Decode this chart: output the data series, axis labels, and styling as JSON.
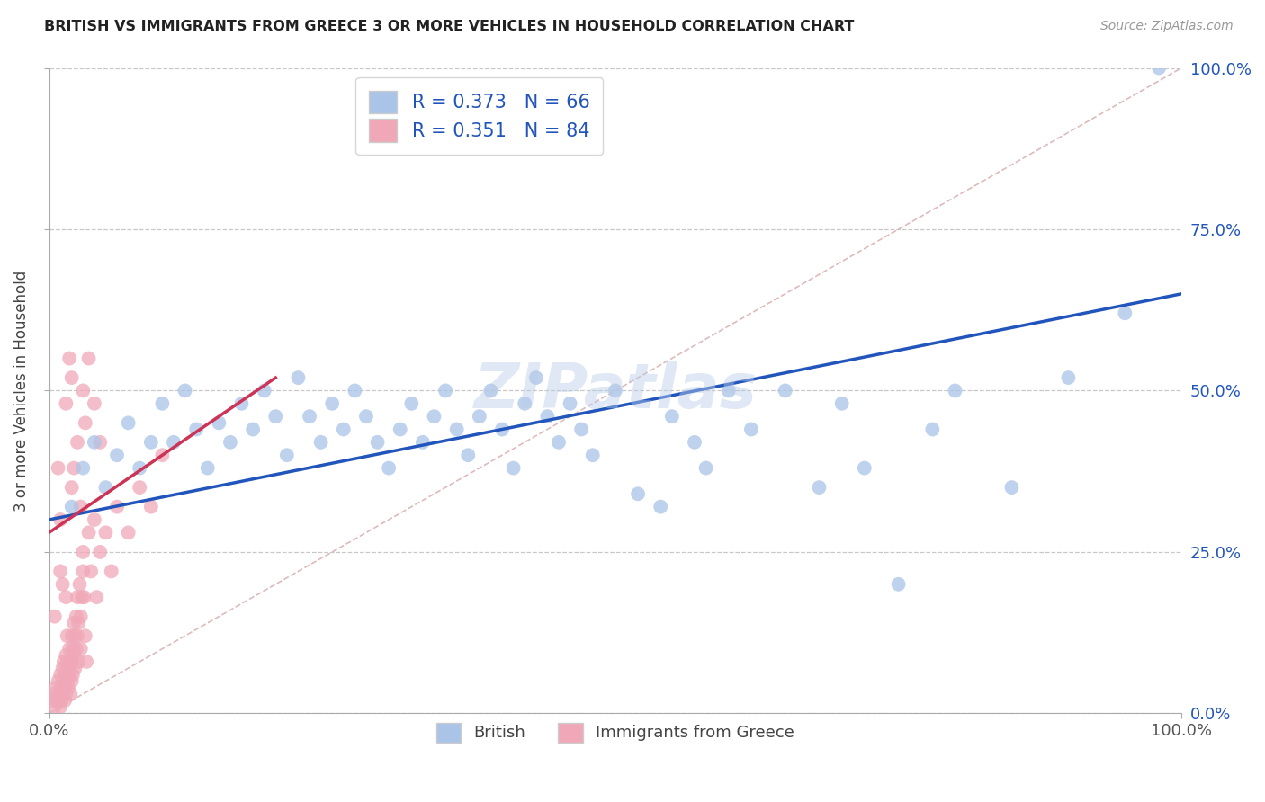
{
  "title": "BRITISH VS IMMIGRANTS FROM GREECE 3 OR MORE VEHICLES IN HOUSEHOLD CORRELATION CHART",
  "source": "Source: ZipAtlas.com",
  "ylabel": "3 or more Vehicles in Household",
  "xlim": [
    0,
    100
  ],
  "ylim": [
    0,
    100
  ],
  "xtick_labels": [
    "0.0%",
    "100.0%"
  ],
  "ytick_labels": [
    "0.0%",
    "25.0%",
    "50.0%",
    "75.0%",
    "100.0%"
  ],
  "ytick_values": [
    0,
    25,
    50,
    75,
    100
  ],
  "grid_color": "#c8c8c8",
  "watermark": "ZIPatlas",
  "legend_R_blue": "0.373",
  "legend_N_blue": "66",
  "legend_R_pink": "0.351",
  "legend_N_pink": "84",
  "blue_color": "#aac4e8",
  "pink_color": "#f0a8b8",
  "blue_line_color": "#2255bb",
  "pink_line_color": "#cc3355",
  "diag_line_color": "#ddbbbb",
  "blue_scatter": [
    [
      2.0,
      32
    ],
    [
      3.0,
      38
    ],
    [
      4.0,
      42
    ],
    [
      5.0,
      35
    ],
    [
      6.0,
      40
    ],
    [
      7.0,
      45
    ],
    [
      8.0,
      38
    ],
    [
      9.0,
      42
    ],
    [
      10.0,
      48
    ],
    [
      11.0,
      42
    ],
    [
      12.0,
      50
    ],
    [
      13.0,
      44
    ],
    [
      14.0,
      38
    ],
    [
      15.0,
      45
    ],
    [
      16.0,
      42
    ],
    [
      17.0,
      48
    ],
    [
      18.0,
      44
    ],
    [
      19.0,
      50
    ],
    [
      20.0,
      46
    ],
    [
      21.0,
      40
    ],
    [
      22.0,
      52
    ],
    [
      23.0,
      46
    ],
    [
      24.0,
      42
    ],
    [
      25.0,
      48
    ],
    [
      26.0,
      44
    ],
    [
      27.0,
      50
    ],
    [
      28.0,
      46
    ],
    [
      29.0,
      42
    ],
    [
      30.0,
      38
    ],
    [
      31.0,
      44
    ],
    [
      32.0,
      48
    ],
    [
      33.0,
      42
    ],
    [
      34.0,
      46
    ],
    [
      35.0,
      50
    ],
    [
      36.0,
      44
    ],
    [
      37.0,
      40
    ],
    [
      38.0,
      46
    ],
    [
      39.0,
      50
    ],
    [
      40.0,
      44
    ],
    [
      41.0,
      38
    ],
    [
      42.0,
      48
    ],
    [
      43.0,
      52
    ],
    [
      44.0,
      46
    ],
    [
      45.0,
      42
    ],
    [
      46.0,
      48
    ],
    [
      47.0,
      44
    ],
    [
      48.0,
      40
    ],
    [
      50.0,
      50
    ],
    [
      52.0,
      34
    ],
    [
      54.0,
      32
    ],
    [
      55.0,
      46
    ],
    [
      57.0,
      42
    ],
    [
      58.0,
      38
    ],
    [
      60.0,
      50
    ],
    [
      62.0,
      44
    ],
    [
      65.0,
      50
    ],
    [
      68.0,
      35
    ],
    [
      70.0,
      48
    ],
    [
      72.0,
      38
    ],
    [
      75.0,
      20
    ],
    [
      78.0,
      44
    ],
    [
      80.0,
      50
    ],
    [
      85.0,
      35
    ],
    [
      90.0,
      52
    ],
    [
      95.0,
      62
    ],
    [
      98.0,
      100
    ]
  ],
  "pink_scatter": [
    [
      0.3,
      2
    ],
    [
      0.4,
      3
    ],
    [
      0.5,
      1
    ],
    [
      0.6,
      4
    ],
    [
      0.7,
      2
    ],
    [
      0.8,
      5
    ],
    [
      0.9,
      3
    ],
    [
      1.0,
      1
    ],
    [
      1.0,
      6
    ],
    [
      1.1,
      4
    ],
    [
      1.1,
      2
    ],
    [
      1.2,
      7
    ],
    [
      1.2,
      3
    ],
    [
      1.3,
      5
    ],
    [
      1.3,
      8
    ],
    [
      1.4,
      4
    ],
    [
      1.4,
      2
    ],
    [
      1.5,
      9
    ],
    [
      1.5,
      6
    ],
    [
      1.5,
      3
    ],
    [
      1.6,
      8
    ],
    [
      1.6,
      5
    ],
    [
      1.6,
      12
    ],
    [
      1.7,
      7
    ],
    [
      1.7,
      4
    ],
    [
      1.8,
      10
    ],
    [
      1.8,
      6
    ],
    [
      1.9,
      8
    ],
    [
      1.9,
      3
    ],
    [
      2.0,
      12
    ],
    [
      2.0,
      8
    ],
    [
      2.0,
      5
    ],
    [
      2.1,
      10
    ],
    [
      2.1,
      6
    ],
    [
      2.2,
      14
    ],
    [
      2.2,
      9
    ],
    [
      2.3,
      12
    ],
    [
      2.3,
      7
    ],
    [
      2.4,
      15
    ],
    [
      2.4,
      10
    ],
    [
      2.5,
      18
    ],
    [
      2.5,
      12
    ],
    [
      2.6,
      14
    ],
    [
      2.6,
      8
    ],
    [
      2.7,
      20
    ],
    [
      2.8,
      15
    ],
    [
      2.8,
      10
    ],
    [
      2.9,
      18
    ],
    [
      3.0,
      25
    ],
    [
      3.0,
      22
    ],
    [
      3.1,
      18
    ],
    [
      3.2,
      12
    ],
    [
      3.3,
      8
    ],
    [
      3.5,
      28
    ],
    [
      3.7,
      22
    ],
    [
      4.0,
      30
    ],
    [
      4.2,
      18
    ],
    [
      4.5,
      25
    ],
    [
      5.0,
      28
    ],
    [
      5.5,
      22
    ],
    [
      6.0,
      32
    ],
    [
      7.0,
      28
    ],
    [
      8.0,
      35
    ],
    [
      9.0,
      32
    ],
    [
      10.0,
      40
    ],
    [
      3.0,
      50
    ],
    [
      3.5,
      55
    ],
    [
      4.0,
      48
    ],
    [
      2.0,
      35
    ],
    [
      2.5,
      42
    ],
    [
      1.5,
      48
    ],
    [
      1.0,
      30
    ],
    [
      2.0,
      52
    ],
    [
      0.8,
      38
    ],
    [
      1.2,
      20
    ],
    [
      2.8,
      32
    ],
    [
      3.2,
      45
    ],
    [
      1.8,
      55
    ],
    [
      2.2,
      38
    ],
    [
      4.5,
      42
    ],
    [
      0.5,
      15
    ],
    [
      1.0,
      22
    ],
    [
      1.5,
      18
    ],
    [
      2.0,
      8
    ]
  ]
}
